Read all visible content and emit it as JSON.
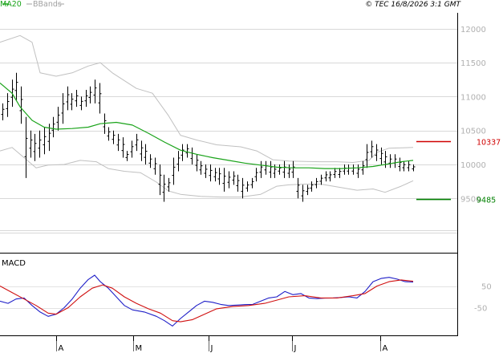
{
  "header": {
    "legend_ma": "MA20",
    "legend_bb": "BBands",
    "copyright": "© TEC 16/8/2026 3:1 GMT",
    "ma_color": "#1aa31a",
    "bb_color": "#c0c0c0"
  },
  "chart_data": [
    {
      "type": "ohlc",
      "x_ticks": [
        "A",
        "M",
        "J",
        "J",
        "A"
      ],
      "y_ticks": [
        "12000",
        "11500",
        "11000",
        "10500",
        "10000",
        "9500"
      ],
      "ylim": [
        9000,
        12200
      ],
      "grid": true,
      "price_bars": [
        {
          "h": 10900,
          "l": 10650
        },
        {
          "h": 11050,
          "l": 10700
        },
        {
          "h": 11250,
          "l": 10850
        },
        {
          "h": 11350,
          "l": 10950
        },
        {
          "h": 11150,
          "l": 10600
        },
        {
          "h": 10700,
          "l": 9800
        },
        {
          "h": 10500,
          "l": 10100
        },
        {
          "h": 10450,
          "l": 10050
        },
        {
          "h": 10500,
          "l": 10100
        },
        {
          "h": 10550,
          "l": 10150
        },
        {
          "h": 10600,
          "l": 10200
        },
        {
          "h": 10700,
          "l": 10400
        },
        {
          "h": 10850,
          "l": 10500
        },
        {
          "h": 11050,
          "l": 10600
        },
        {
          "h": 11150,
          "l": 10800
        },
        {
          "h": 11050,
          "l": 10800
        },
        {
          "h": 11100,
          "l": 10850
        },
        {
          "h": 11000,
          "l": 10800
        },
        {
          "h": 11100,
          "l": 10850
        },
        {
          "h": 11150,
          "l": 10900
        },
        {
          "h": 11250,
          "l": 10900
        },
        {
          "h": 11200,
          "l": 10750
        },
        {
          "h": 10750,
          "l": 10450
        },
        {
          "h": 10550,
          "l": 10350
        },
        {
          "h": 10500,
          "l": 10300
        },
        {
          "h": 10450,
          "l": 10200
        },
        {
          "h": 10400,
          "l": 10100
        },
        {
          "h": 10200,
          "l": 10050
        },
        {
          "h": 10350,
          "l": 10100
        },
        {
          "h": 10450,
          "l": 10200
        },
        {
          "h": 10350,
          "l": 10050
        },
        {
          "h": 10300,
          "l": 10000
        },
        {
          "h": 10150,
          "l": 9950
        },
        {
          "h": 10100,
          "l": 9850
        },
        {
          "h": 10000,
          "l": 9550
        },
        {
          "h": 9850,
          "l": 9450
        },
        {
          "h": 9800,
          "l": 9600
        },
        {
          "h": 10100,
          "l": 9700
        },
        {
          "h": 10200,
          "l": 9900
        },
        {
          "h": 10300,
          "l": 10050
        },
        {
          "h": 10300,
          "l": 10100
        },
        {
          "h": 10250,
          "l": 10000
        },
        {
          "h": 10150,
          "l": 9900
        },
        {
          "h": 10050,
          "l": 9850
        },
        {
          "h": 10000,
          "l": 9800
        },
        {
          "h": 10000,
          "l": 9750
        },
        {
          "h": 9950,
          "l": 9750
        },
        {
          "h": 9950,
          "l": 9700
        },
        {
          "h": 9950,
          "l": 9600
        },
        {
          "h": 9900,
          "l": 9650
        },
        {
          "h": 9900,
          "l": 9700
        },
        {
          "h": 9850,
          "l": 9600
        },
        {
          "h": 9800,
          "l": 9500
        },
        {
          "h": 9750,
          "l": 9600
        },
        {
          "h": 9800,
          "l": 9650
        },
        {
          "h": 9950,
          "l": 9750
        },
        {
          "h": 10050,
          "l": 9800
        },
        {
          "h": 10050,
          "l": 9850
        },
        {
          "h": 10050,
          "l": 9800
        },
        {
          "h": 10000,
          "l": 9800
        },
        {
          "h": 10000,
          "l": 9850
        },
        {
          "h": 10050,
          "l": 9800
        },
        {
          "h": 10000,
          "l": 9800
        },
        {
          "h": 10050,
          "l": 9800
        },
        {
          "h": 9800,
          "l": 9500
        },
        {
          "h": 9700,
          "l": 9450
        },
        {
          "h": 9700,
          "l": 9550
        },
        {
          "h": 9750,
          "l": 9600
        },
        {
          "h": 9800,
          "l": 9650
        },
        {
          "h": 9850,
          "l": 9700
        },
        {
          "h": 9900,
          "l": 9750
        },
        {
          "h": 9900,
          "l": 9750
        },
        {
          "h": 9950,
          "l": 9800
        },
        {
          "h": 9950,
          "l": 9800
        },
        {
          "h": 10000,
          "l": 9850
        },
        {
          "h": 10000,
          "l": 9850
        },
        {
          "h": 10000,
          "l": 9850
        },
        {
          "h": 10000,
          "l": 9800
        },
        {
          "h": 10050,
          "l": 9850
        },
        {
          "h": 10300,
          "l": 9950
        },
        {
          "h": 10350,
          "l": 10100
        },
        {
          "h": 10300,
          "l": 10050
        },
        {
          "h": 10250,
          "l": 10000
        },
        {
          "h": 10200,
          "l": 9950
        },
        {
          "h": 10150,
          "l": 9950
        },
        {
          "h": 10150,
          "l": 9950
        },
        {
          "h": 10100,
          "l": 9900
        },
        {
          "h": 10050,
          "l": 9900
        },
        {
          "h": 10050,
          "l": 9900
        },
        {
          "h": 10000,
          "l": 9900
        }
      ],
      "ma20": [
        [
          0,
          11200
        ],
        [
          15,
          11050
        ],
        [
          25,
          10850
        ],
        [
          40,
          10650
        ],
        [
          55,
          10550
        ],
        [
          70,
          10520
        ],
        [
          90,
          10530
        ],
        [
          110,
          10550
        ],
        [
          125,
          10600
        ],
        [
          145,
          10620
        ],
        [
          165,
          10580
        ],
        [
          185,
          10460
        ],
        [
          205,
          10330
        ],
        [
          225,
          10210
        ],
        [
          245,
          10150
        ],
        [
          265,
          10100
        ],
        [
          285,
          10060
        ],
        [
          305,
          10020
        ],
        [
          325,
          9990
        ],
        [
          345,
          9960
        ],
        [
          365,
          9950
        ],
        [
          385,
          9950
        ],
        [
          405,
          9940
        ],
        [
          425,
          9940
        ],
        [
          445,
          9950
        ],
        [
          465,
          9970
        ],
        [
          485,
          10010
        ],
        [
          500,
          10040
        ],
        [
          515,
          10060
        ]
      ],
      "bb_upper": [
        [
          0,
          11800
        ],
        [
          25,
          11900
        ],
        [
          40,
          11800
        ],
        [
          50,
          11350
        ],
        [
          70,
          11300
        ],
        [
          90,
          11350
        ],
        [
          110,
          11450
        ],
        [
          125,
          11500
        ],
        [
          140,
          11350
        ],
        [
          170,
          11120
        ],
        [
          190,
          11050
        ],
        [
          210,
          10720
        ],
        [
          225,
          10430
        ],
        [
          245,
          10360
        ],
        [
          270,
          10290
        ],
        [
          300,
          10260
        ],
        [
          320,
          10200
        ],
        [
          340,
          10070
        ],
        [
          360,
          10050
        ],
        [
          400,
          10040
        ],
        [
          420,
          10040
        ],
        [
          440,
          10030
        ],
        [
          460,
          10060
        ],
        [
          470,
          10180
        ],
        [
          485,
          10240
        ],
        [
          515,
          10250
        ]
      ],
      "bb_lower": [
        [
          0,
          10200
        ],
        [
          15,
          10250
        ],
        [
          30,
          10100
        ],
        [
          45,
          9950
        ],
        [
          60,
          9990
        ],
        [
          80,
          10000
        ],
        [
          100,
          10060
        ],
        [
          120,
          10040
        ],
        [
          135,
          9940
        ],
        [
          155,
          9900
        ],
        [
          175,
          9880
        ],
        [
          195,
          9740
        ],
        [
          210,
          9610
        ],
        [
          225,
          9560
        ],
        [
          250,
          9530
        ],
        [
          275,
          9520
        ],
        [
          300,
          9520
        ],
        [
          325,
          9560
        ],
        [
          345,
          9680
        ],
        [
          360,
          9700
        ],
        [
          380,
          9710
        ],
        [
          400,
          9710
        ],
        [
          425,
          9660
        ],
        [
          445,
          9620
        ],
        [
          465,
          9640
        ],
        [
          480,
          9590
        ],
        [
          500,
          9680
        ],
        [
          515,
          9760
        ]
      ],
      "markers": [
        {
          "label": "10337",
          "value": 10337,
          "color": "#d00000"
        },
        {
          "label": "9485",
          "value": 9485,
          "color": "#008000"
        }
      ]
    },
    {
      "type": "line",
      "title": "MACD",
      "y_ticks": [
        "50",
        "-50"
      ],
      "ylim": [
        -150,
        120
      ],
      "series": [
        {
          "color": "#1f1fc8",
          "points": [
            [
              0,
              -20
            ],
            [
              10,
              -30
            ],
            [
              20,
              -10
            ],
            [
              30,
              -5
            ],
            [
              40,
              -40
            ],
            [
              50,
              -70
            ],
            [
              60,
              -90
            ],
            [
              70,
              -80
            ],
            [
              80,
              -50
            ],
            [
              90,
              -10
            ],
            [
              100,
              40
            ],
            [
              110,
              80
            ],
            [
              118,
              100
            ],
            [
              125,
              70
            ],
            [
              135,
              40
            ],
            [
              145,
              0
            ],
            [
              155,
              -40
            ],
            [
              165,
              -60
            ],
            [
              180,
              -70
            ],
            [
              195,
              -90
            ],
            [
              205,
              -110
            ],
            [
              215,
              -135
            ],
            [
              225,
              -100
            ],
            [
              235,
              -70
            ],
            [
              245,
              -40
            ],
            [
              255,
              -20
            ],
            [
              265,
              -25
            ],
            [
              275,
              -35
            ],
            [
              285,
              -40
            ],
            [
              295,
              -38
            ],
            [
              305,
              -36
            ],
            [
              315,
              -35
            ],
            [
              325,
              -20
            ],
            [
              335,
              -5
            ],
            [
              345,
              0
            ],
            [
              355,
              25
            ],
            [
              365,
              10
            ],
            [
              375,
              15
            ],
            [
              385,
              -5
            ],
            [
              395,
              -8
            ],
            [
              405,
              -6
            ],
            [
              415,
              -5
            ],
            [
              425,
              -3
            ],
            [
              435,
              0
            ],
            [
              445,
              -5
            ],
            [
              455,
              25
            ],
            [
              465,
              70
            ],
            [
              475,
              85
            ],
            [
              485,
              90
            ],
            [
              495,
              82
            ],
            [
              505,
              70
            ],
            [
              515,
              68
            ]
          ]
        },
        {
          "color": "#d01010",
          "points": [
            [
              0,
              50
            ],
            [
              15,
              20
            ],
            [
              30,
              -10
            ],
            [
              45,
              -40
            ],
            [
              60,
              -75
            ],
            [
              70,
              -80
            ],
            [
              85,
              -50
            ],
            [
              100,
              0
            ],
            [
              115,
              40
            ],
            [
              128,
              55
            ],
            [
              140,
              40
            ],
            [
              155,
              0
            ],
            [
              170,
              -30
            ],
            [
              185,
              -55
            ],
            [
              200,
              -75
            ],
            [
              215,
              -110
            ],
            [
              225,
              -115
            ],
            [
              240,
              -105
            ],
            [
              255,
              -80
            ],
            [
              270,
              -55
            ],
            [
              290,
              -45
            ],
            [
              310,
              -40
            ],
            [
              330,
              -30
            ],
            [
              345,
              -15
            ],
            [
              360,
              0
            ],
            [
              380,
              5
            ],
            [
              400,
              -5
            ],
            [
              420,
              -5
            ],
            [
              440,
              5
            ],
            [
              455,
              15
            ],
            [
              470,
              50
            ],
            [
              485,
              70
            ],
            [
              500,
              78
            ],
            [
              515,
              72
            ]
          ]
        }
      ]
    }
  ]
}
